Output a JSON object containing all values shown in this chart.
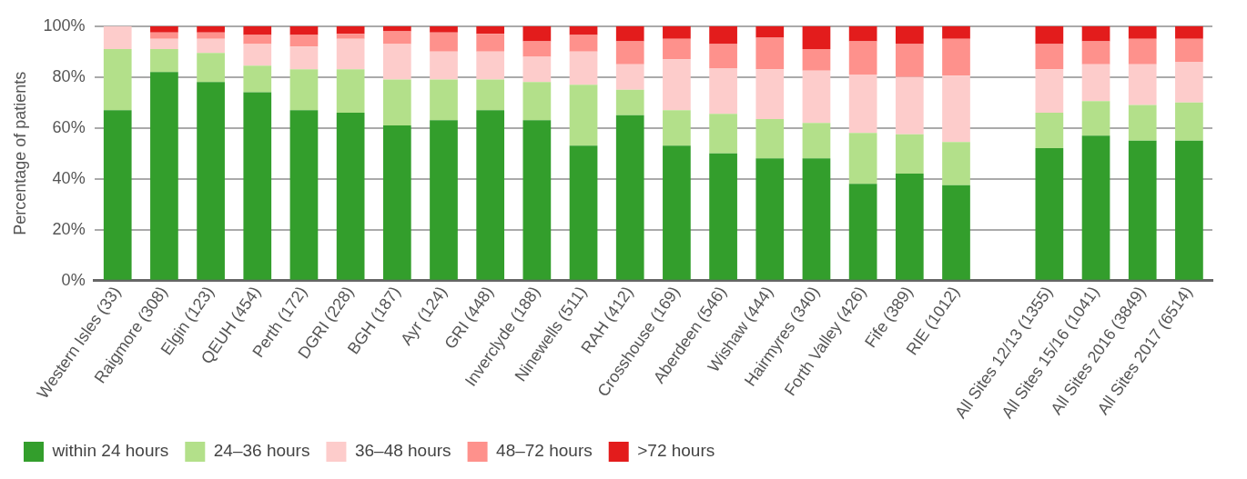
{
  "chart_data": {
    "type": "bar",
    "stacked": true,
    "ylabel": "Percentage of patients",
    "categories": [
      "Western Isles (33)",
      "Raigmore (308)",
      "Elgin (123)",
      "QEUH (454)",
      "Perth (172)",
      "DGRI (228)",
      "BGH (187)",
      "Ayr (124)",
      "GRI (448)",
      "Inverclyde (188)",
      "Ninewells (511)",
      "RAH (412)",
      "Crosshouse (169)",
      "Aberdeen (546)",
      "Wishaw (444)",
      "Hairmyres (340)",
      "Forth Valley (426)",
      "Fife (389)",
      "RIE (1012)",
      null,
      "All Sites 12/13 (1355)",
      "All Sites 15/16 (1041)",
      "All Sites 2016 (3849)",
      "All Sites 2017 (6514)"
    ],
    "series": [
      {
        "name": "within 24 hours",
        "color": "#339e2c",
        "values": [
          67,
          82,
          78,
          74,
          67,
          66,
          61,
          63,
          67,
          63,
          53,
          65,
          53,
          50,
          48,
          48,
          38,
          42,
          37.5,
          null,
          52,
          57,
          55,
          55
        ]
      },
      {
        "name": "24–36 hours",
        "color": "#b3e08a",
        "values": [
          24,
          9,
          11.5,
          10.5,
          16,
          17,
          18,
          16,
          12,
          15,
          24,
          10,
          14,
          15.5,
          15.5,
          14,
          20,
          15.5,
          17,
          null,
          14,
          13.5,
          14,
          15
        ]
      },
      {
        "name": "36–48 hours",
        "color": "#fdcccb",
        "values": [
          9,
          4,
          5.5,
          8.5,
          9,
          12,
          14,
          11,
          11,
          10,
          13,
          10,
          20,
          18,
          19.5,
          20.5,
          23,
          22.5,
          26,
          null,
          17,
          14.5,
          16,
          16
        ]
      },
      {
        "name": "48–72 hours",
        "color": "#fe918c",
        "values": [
          0,
          2.5,
          2.5,
          3.5,
          4.5,
          2,
          5,
          7.5,
          7,
          6,
          6.5,
          9,
          8,
          9.5,
          12.5,
          8.5,
          13,
          13,
          14.5,
          null,
          10,
          9,
          10,
          9
        ]
      },
      {
        "name": ">72 hours",
        "color": "#e31c1c",
        "values": [
          0,
          2.5,
          2.5,
          3.5,
          3.5,
          3,
          2,
          2.5,
          3,
          6,
          3.5,
          6,
          5,
          7,
          4.5,
          9,
          6,
          7,
          5,
          null,
          7,
          6,
          5,
          5
        ]
      }
    ],
    "ylim": [
      0,
      100
    ],
    "yticks": [
      {
        "value": 0,
        "label": "0%"
      },
      {
        "value": 20,
        "label": "20%"
      },
      {
        "value": 40,
        "label": "40%"
      },
      {
        "value": 60,
        "label": "60%"
      },
      {
        "value": 80,
        "label": "80%"
      },
      {
        "value": 100,
        "label": "100%"
      }
    ],
    "grid": "y",
    "legend": "bottom"
  }
}
